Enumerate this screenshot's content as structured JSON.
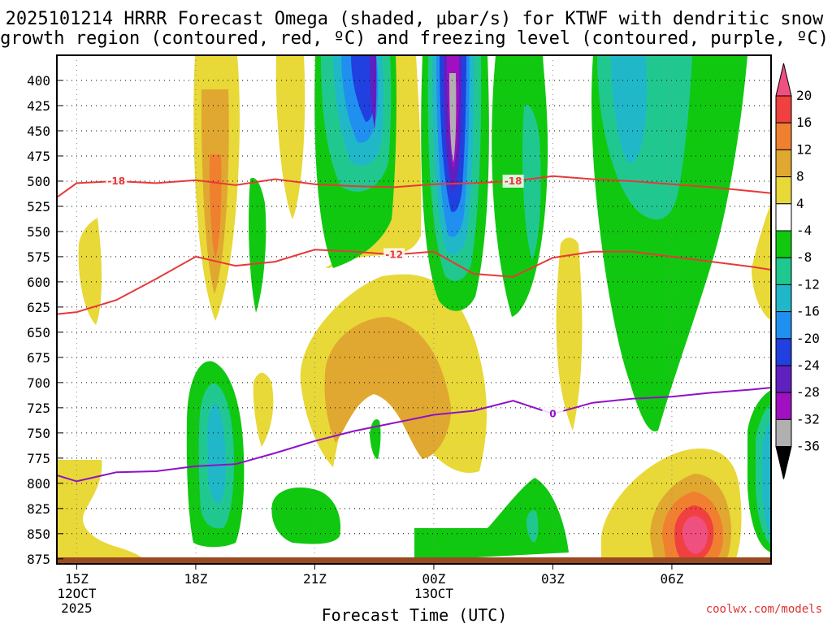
{
  "chart_data": {
    "type": "heatmap",
    "title_line1": "2025101214 HRRR Forecast Omega (shaded, µbar/s) for KTWF with dendritic snow",
    "title_line2": "growth region (contoured, red, ºC) and freezing level (contoured, purple, ºC)",
    "xlabel": "Forecast Time (UTC)",
    "ylabel": "",
    "x_range_hours": [
      14.5,
      32.5
    ],
    "x_ticks": [
      {
        "hour": 15,
        "label": "15Z",
        "sub1": "12OCT",
        "sub2": "2025"
      },
      {
        "hour": 18,
        "label": "18Z",
        "sub1": "",
        "sub2": ""
      },
      {
        "hour": 21,
        "label": "21Z",
        "sub1": "",
        "sub2": ""
      },
      {
        "hour": 24,
        "label": "00Z",
        "sub1": "13OCT",
        "sub2": ""
      },
      {
        "hour": 27,
        "label": "03Z",
        "sub1": "",
        "sub2": ""
      },
      {
        "hour": 30,
        "label": "06Z",
        "sub1": "",
        "sub2": ""
      }
    ],
    "y_range_hpa": [
      375,
      880
    ],
    "y_ticks": [
      400,
      425,
      450,
      475,
      500,
      525,
      550,
      575,
      600,
      625,
      650,
      675,
      700,
      725,
      750,
      775,
      800,
      825,
      850,
      875
    ],
    "colorbar": {
      "labels": [
        "20",
        "16",
        "12",
        "8",
        "4",
        "-4",
        "-8",
        "-12",
        "-16",
        "-20",
        "-24",
        "-28",
        "-32",
        "-36"
      ],
      "colors": [
        "#f05080",
        "#f04040",
        "#f08030",
        "#e0a830",
        "#e8d838",
        "#ffffff",
        "#10c810",
        "#20c890",
        "#20b8c8",
        "#2090f0",
        "#2040e0",
        "#6020c0",
        "#a010c0",
        "#b0b0b0",
        "#000000"
      ]
    },
    "contours": {
      "dgz_upper": {
        "label": "-18",
        "color": "#e83838",
        "points": [
          [
            14.5,
            516
          ],
          [
            15,
            502
          ],
          [
            16,
            500
          ],
          [
            17,
            502
          ],
          [
            18,
            499
          ],
          [
            19,
            504
          ],
          [
            20,
            498
          ],
          [
            21,
            503
          ],
          [
            22,
            505
          ],
          [
            23,
            506
          ],
          [
            24,
            503
          ],
          [
            25,
            502
          ],
          [
            26,
            500
          ],
          [
            27,
            495
          ],
          [
            28,
            498
          ],
          [
            29,
            500
          ],
          [
            30,
            503
          ],
          [
            31,
            506
          ],
          [
            32,
            510
          ],
          [
            32.5,
            512
          ]
        ]
      },
      "dgz_lower": {
        "label": "-12",
        "color": "#e83838",
        "points": [
          [
            14.5,
            632
          ],
          [
            15,
            630
          ],
          [
            16,
            618
          ],
          [
            17,
            597
          ],
          [
            18,
            575
          ],
          [
            19,
            584
          ],
          [
            20,
            580
          ],
          [
            21,
            568
          ],
          [
            22,
            570
          ],
          [
            23,
            573
          ],
          [
            24,
            570
          ],
          [
            25,
            592
          ],
          [
            26,
            595
          ],
          [
            27,
            576
          ],
          [
            28,
            570
          ],
          [
            29,
            570
          ],
          [
            30,
            575
          ],
          [
            31,
            580
          ],
          [
            32,
            585
          ],
          [
            32.5,
            588
          ]
        ]
      },
      "freezing": {
        "label": "0",
        "color": "#9010c8",
        "points": [
          [
            14.5,
            792
          ],
          [
            15,
            798
          ],
          [
            16,
            789
          ],
          [
            17,
            788
          ],
          [
            18,
            783
          ],
          [
            19,
            781
          ],
          [
            20,
            770
          ],
          [
            21,
            758
          ],
          [
            22,
            748
          ],
          [
            23,
            740
          ],
          [
            24,
            732
          ],
          [
            25,
            728
          ],
          [
            26,
            718
          ],
          [
            27,
            731
          ],
          [
            28,
            720
          ],
          [
            29,
            716
          ],
          [
            30,
            714
          ],
          [
            31,
            710
          ],
          [
            32,
            707
          ],
          [
            32.5,
            705
          ]
        ]
      }
    },
    "annotation": "coolwx.com/models"
  }
}
